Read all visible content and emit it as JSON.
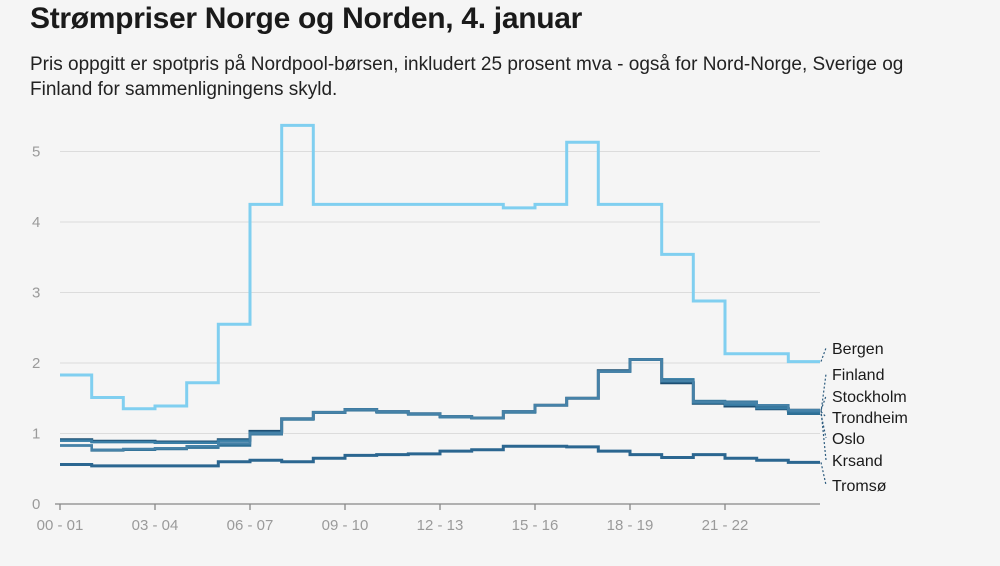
{
  "title": "Strømpriser Norge og Norden, 4. januar",
  "subtitle": "Pris oppgitt er spotpris på Nordpool-børsen, inkludert 25 prosent mva - også for Nord-Norge, Sverige og Finland for sammenligningens skyld.",
  "chart_data": {
    "type": "line",
    "step": true,
    "title": "Strømpriser Norge og Norden, 4. januar",
    "xlabel": "",
    "ylabel": "",
    "ylim": [
      0,
      5.5
    ],
    "yticks": [
      0,
      1,
      2,
      3,
      4,
      5
    ],
    "x_tick_labels": [
      "00 - 01",
      "03 - 04",
      "06 - 07",
      "09 - 10",
      "12 - 13",
      "15 - 16",
      "18 - 19",
      "21 - 22"
    ],
    "x_tick_hours": [
      0,
      3,
      6,
      9,
      12,
      15,
      18,
      21
    ],
    "hours": 24,
    "series": [
      {
        "name": "Bergen",
        "color": "#80cff0",
        "width": 3,
        "values": [
          1.83,
          1.51,
          1.35,
          1.39,
          1.72,
          2.55,
          4.25,
          5.37,
          4.25,
          4.25,
          4.25,
          4.25,
          4.25,
          4.25,
          4.2,
          4.25,
          5.13,
          4.25,
          4.25,
          3.54,
          2.88,
          2.13,
          2.13,
          2.02
        ]
      },
      {
        "name": "Finland",
        "color": "#4f95b8",
        "width": 2.5,
        "values": [
          0.9,
          0.88,
          0.88,
          0.87,
          0.87,
          0.9,
          1.0,
          1.2,
          1.3,
          1.33,
          1.3,
          1.27,
          1.23,
          1.22,
          1.3,
          1.4,
          1.5,
          1.88,
          2.05,
          1.77,
          1.46,
          1.43,
          1.38,
          1.3
        ]
      },
      {
        "name": "Stockholm",
        "color": "#1d4e72",
        "width": 3,
        "values": [
          0.91,
          0.89,
          0.89,
          0.88,
          0.88,
          0.91,
          1.03,
          1.21,
          1.3,
          1.34,
          1.31,
          1.28,
          1.24,
          1.22,
          1.31,
          1.4,
          1.5,
          1.89,
          2.05,
          1.72,
          1.43,
          1.39,
          1.35,
          1.33
        ]
      },
      {
        "name": "Trondheim",
        "color": "#3a7ea6",
        "width": 2.5,
        "values": [
          0.9,
          0.88,
          0.88,
          0.87,
          0.87,
          0.9,
          1.01,
          1.21,
          1.3,
          1.34,
          1.31,
          1.28,
          1.24,
          1.22,
          1.31,
          1.4,
          1.5,
          1.88,
          2.05,
          1.74,
          1.44,
          1.41,
          1.36,
          1.31
        ]
      },
      {
        "name": "Oslo",
        "color": "#2e6f95",
        "width": 2.5,
        "values": [
          0.83,
          0.76,
          0.77,
          0.78,
          0.8,
          0.83,
          0.99,
          1.2,
          1.3,
          1.33,
          1.3,
          1.28,
          1.24,
          1.22,
          1.3,
          1.4,
          1.5,
          1.88,
          2.05,
          1.76,
          1.46,
          1.45,
          1.39,
          1.28
        ]
      },
      {
        "name": "Krsand",
        "color": "#4682a8",
        "width": 2.5,
        "values": [
          0.83,
          0.77,
          0.78,
          0.79,
          0.82,
          0.86,
          1.0,
          1.21,
          1.3,
          1.34,
          1.31,
          1.28,
          1.24,
          1.22,
          1.31,
          1.4,
          1.5,
          1.88,
          2.05,
          1.75,
          1.45,
          1.44,
          1.4,
          1.33
        ]
      },
      {
        "name": "Tromsø",
        "color": "#2b6690",
        "width": 3,
        "values": [
          0.56,
          0.54,
          0.54,
          0.54,
          0.54,
          0.6,
          0.62,
          0.6,
          0.65,
          0.69,
          0.7,
          0.71,
          0.75,
          0.77,
          0.82,
          0.82,
          0.81,
          0.75,
          0.7,
          0.66,
          0.7,
          0.65,
          0.62,
          0.59
        ]
      }
    ]
  }
}
